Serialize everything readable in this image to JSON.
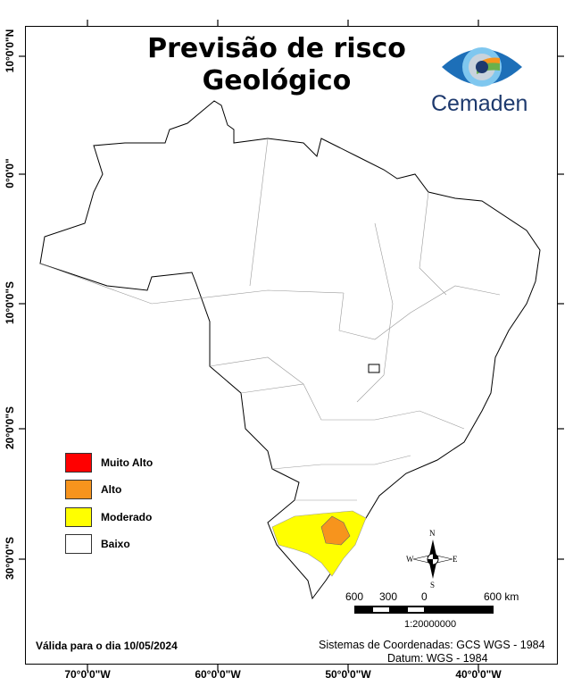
{
  "title_line1": "Previsão de risco",
  "title_line2": "Geológico",
  "logo_text": "Cemaden",
  "lat_labels": [
    "10°0'0\"N",
    "0°0'0\"",
    "10°0'0\"S",
    "20°0'0\"S",
    "30°0'0\"S"
  ],
  "lon_labels": [
    "70°0'0\"W",
    "60°0'0\"W",
    "50°0'0\"W",
    "40°0'0\"W"
  ],
  "legend": [
    {
      "label": "Muito Alto",
      "color": "#ff0000"
    },
    {
      "label": "Alto",
      "color": "#f7941d"
    },
    {
      "label": "Moderado",
      "color": "#ffff00"
    },
    {
      "label": "Baixo",
      "color": "#ffffff"
    }
  ],
  "compass": {
    "n": "N",
    "s": "S",
    "e": "E",
    "w": "W"
  },
  "scalebar": {
    "labels": [
      "600",
      "300",
      "0",
      "600 km"
    ],
    "scale": "1:20000000"
  },
  "validity": "Válida para o dia 10/05/2024",
  "crs_line1": "Sistemas de Coordenadas: GCS WGS - 1984",
  "crs_line2": "Datum: WGS - 1984"
}
